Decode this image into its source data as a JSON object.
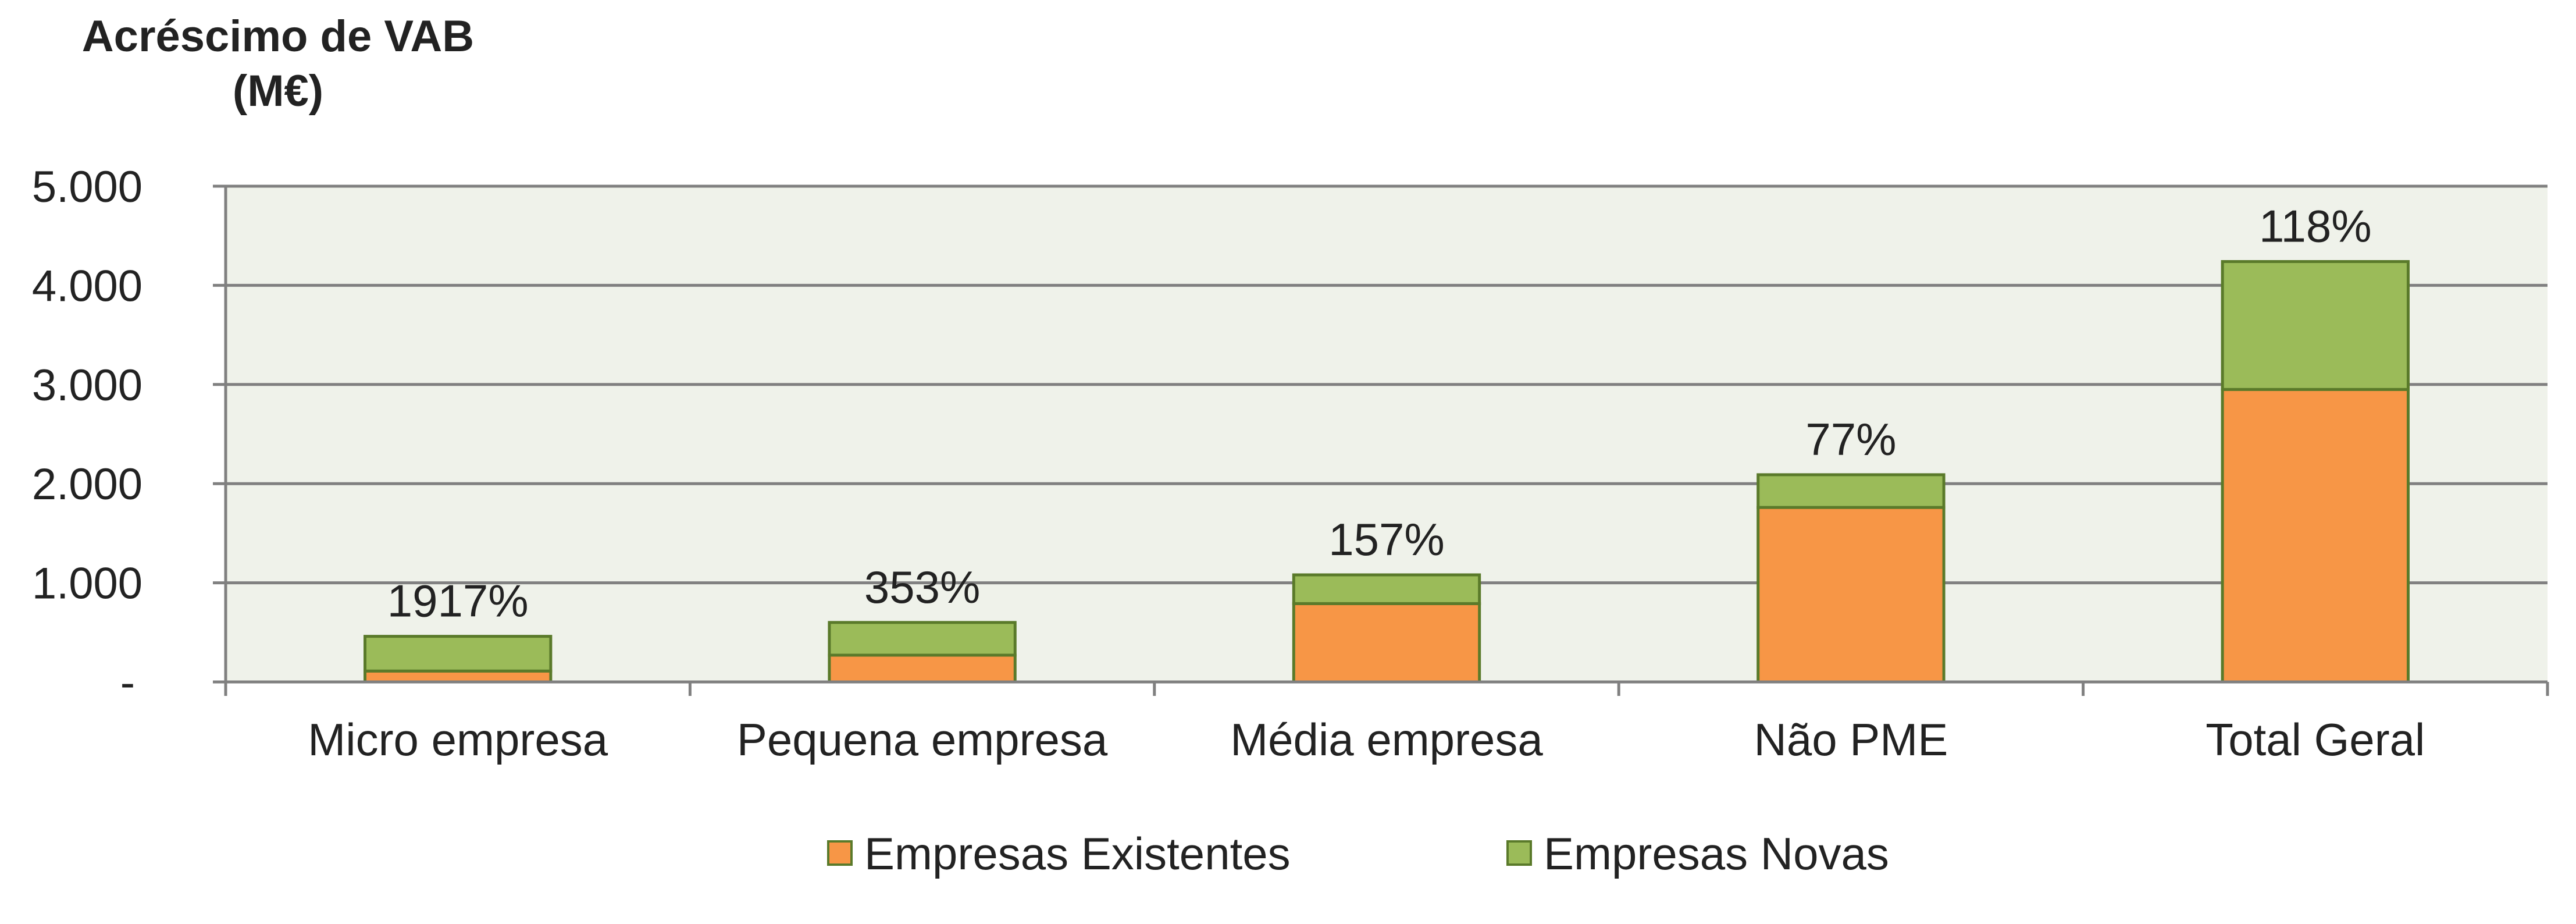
{
  "chart_data": {
    "type": "bar",
    "stacked": true,
    "title": "",
    "ylabel_line1": "Acréscimo de VAB",
    "ylabel_line2": "(M€)",
    "xlabel": "",
    "ylim": [
      0,
      5000
    ],
    "yticks": [
      0,
      1000,
      2000,
      3000,
      4000,
      5000
    ],
    "ytick_labels": [
      "-",
      "1.000",
      "2.000",
      "3.000",
      "4.000",
      "5.000"
    ],
    "categories": [
      "Micro empresa",
      "Pequena empresa",
      "Média empresa",
      "Não PME",
      "Total Geral"
    ],
    "series": [
      {
        "name": "Empresas Existentes",
        "color": "#f79646",
        "values": [
          110,
          270,
          790,
          1760,
          2950
        ]
      },
      {
        "name": "Empresas Novas",
        "color": "#9bbb59",
        "values": [
          350,
          330,
          290,
          330,
          1290
        ]
      }
    ],
    "bar_labels": [
      "1917%",
      "353%",
      "157%",
      "77%",
      "118%"
    ],
    "grid": true,
    "plot_background": "#eff2ea",
    "gridline_color": "#808080",
    "bar_border_color": "#5a7a2a",
    "legend": "bottom"
  }
}
